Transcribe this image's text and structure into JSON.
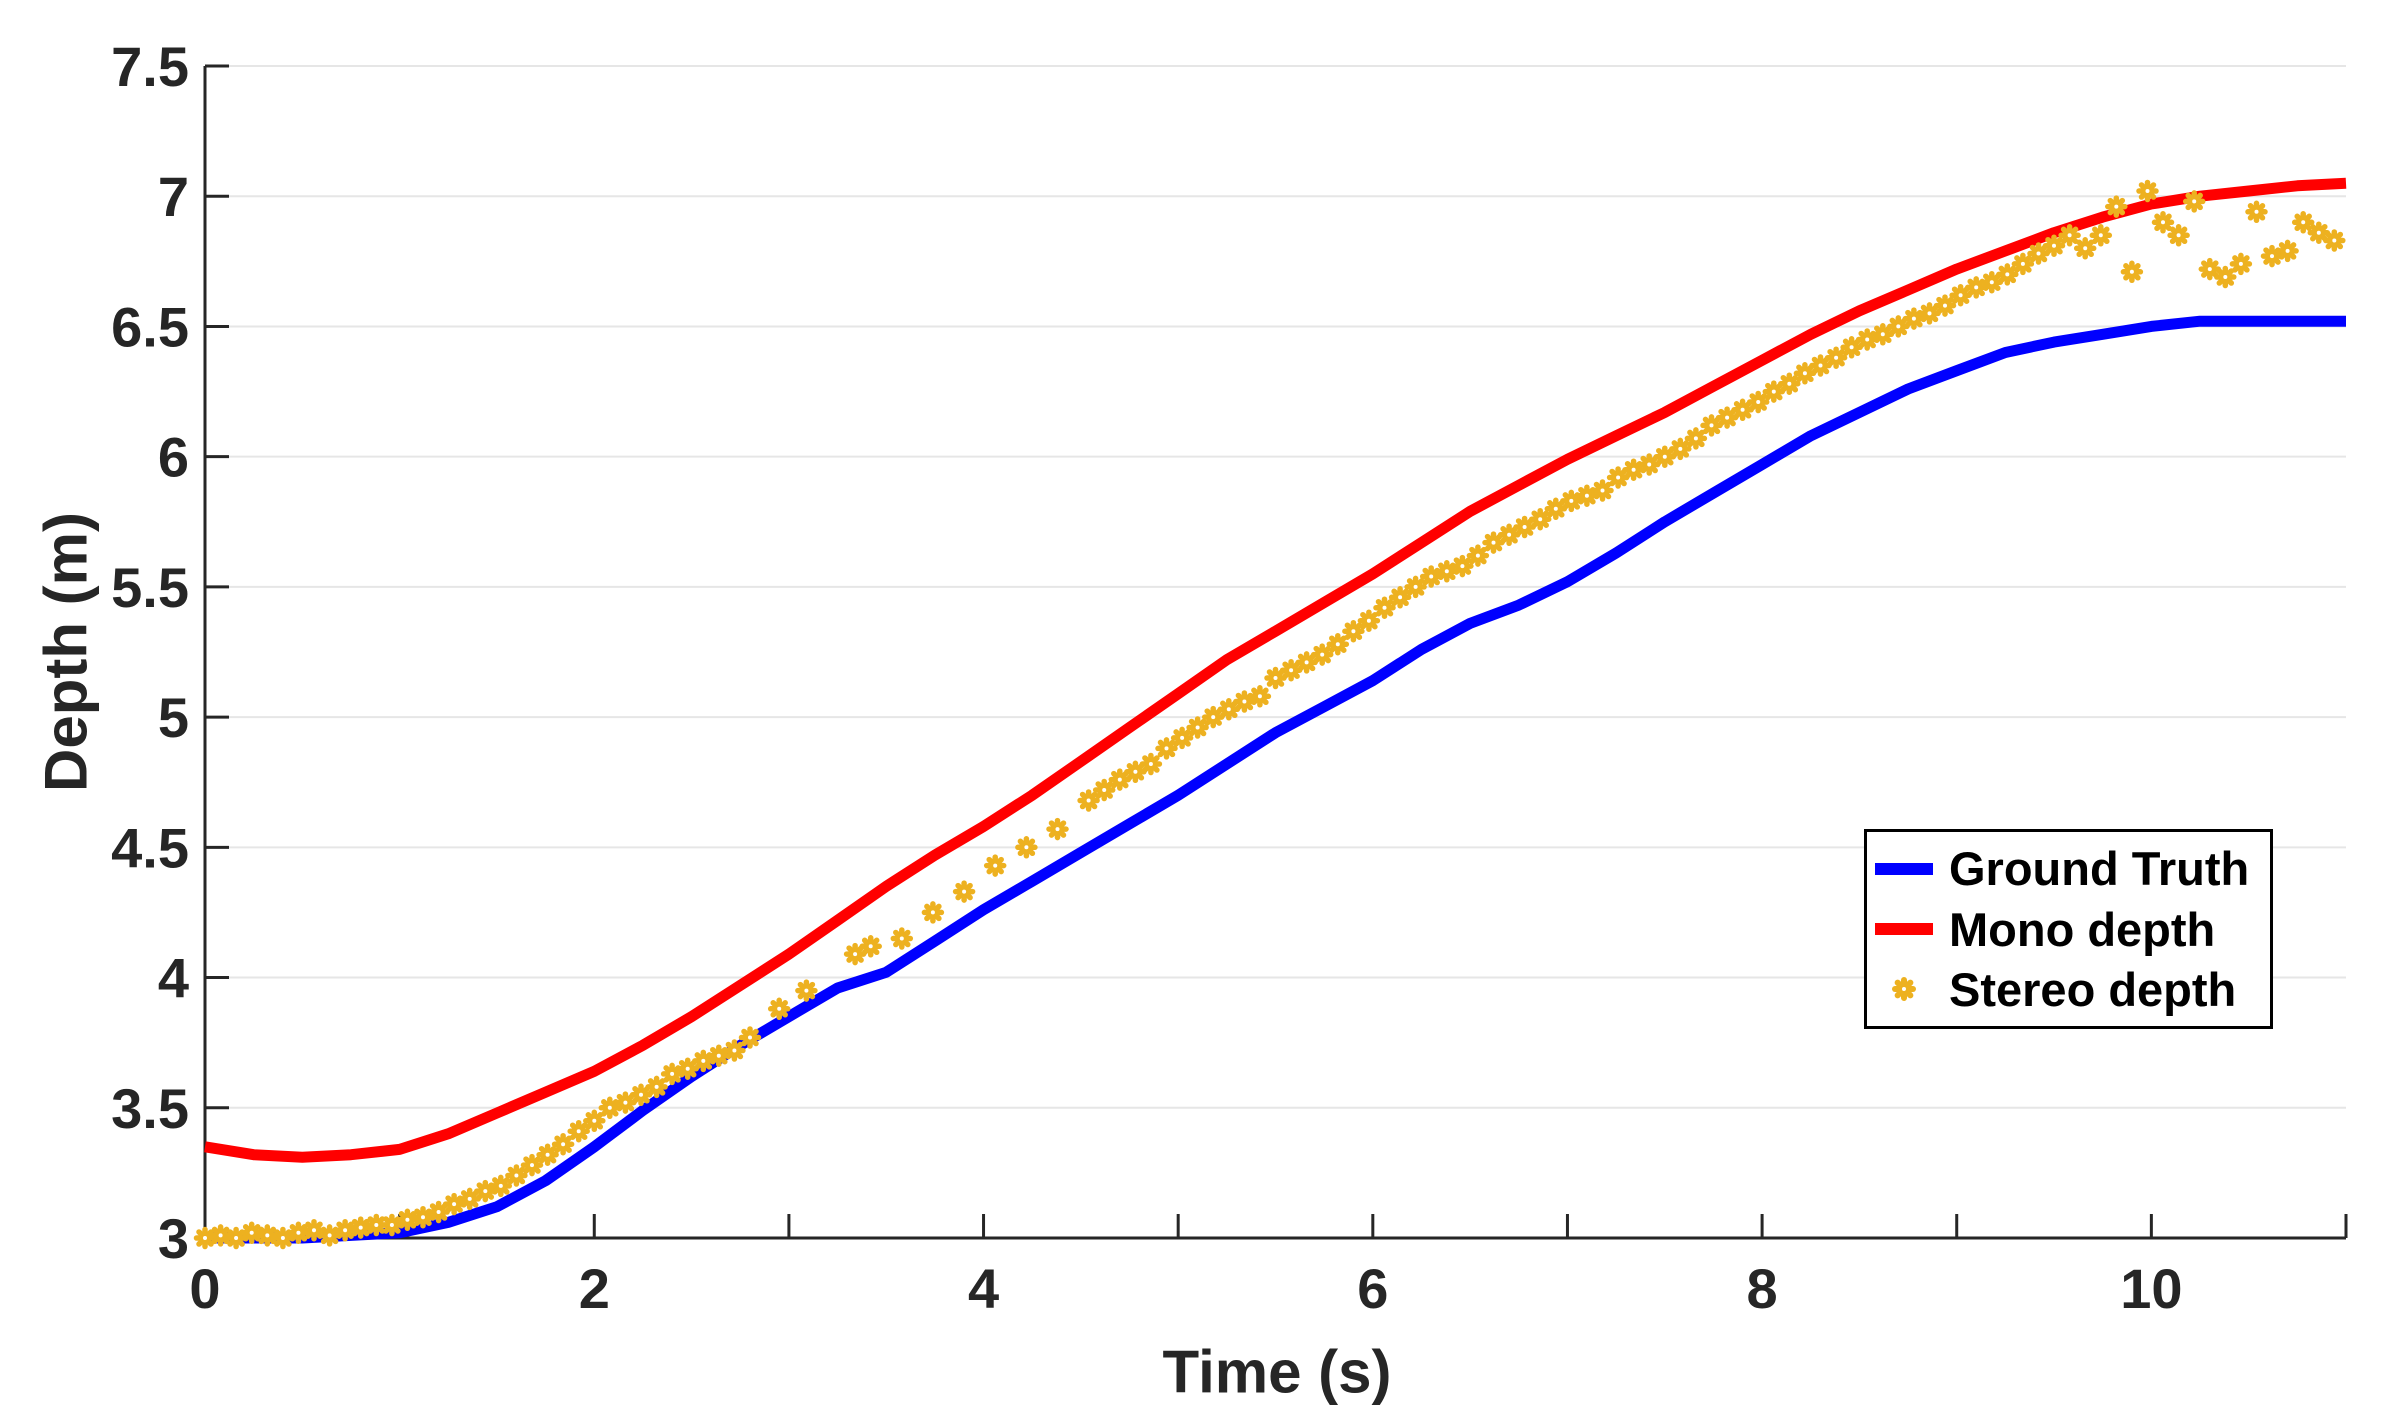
{
  "figure": {
    "background": "#ffffff"
  },
  "chart_data": {
    "type": "line",
    "title": "",
    "xlabel": "Time (s)",
    "ylabel": "Depth (m)",
    "xlim": [
      0,
      11
    ],
    "ylim": [
      3,
      7.5
    ],
    "grid": "horizontal",
    "grid_color": "#e6e6e6",
    "axis_color": "#262626",
    "tick_label_color": "#262626",
    "x_ticks": [
      0,
      1,
      2,
      3,
      4,
      5,
      6,
      7,
      8,
      9,
      10,
      11
    ],
    "x_tick_labels": [
      {
        "value": 0,
        "label": "0"
      },
      {
        "value": 2,
        "label": "2"
      },
      {
        "value": 4,
        "label": "4"
      },
      {
        "value": 6,
        "label": "6"
      },
      {
        "value": 8,
        "label": "8"
      },
      {
        "value": 10,
        "label": "10"
      }
    ],
    "y_tick_labels": [
      {
        "value": 3,
        "label": "3"
      },
      {
        "value": 3.5,
        "label": "3.5"
      },
      {
        "value": 4,
        "label": "4"
      },
      {
        "value": 4.5,
        "label": "4.5"
      },
      {
        "value": 5,
        "label": "5"
      },
      {
        "value": 5.5,
        "label": "5.5"
      },
      {
        "value": 6,
        "label": "6"
      },
      {
        "value": 6.5,
        "label": "6.5"
      },
      {
        "value": 7,
        "label": "7"
      },
      {
        "value": 7.5,
        "label": "7.5"
      }
    ],
    "legend": {
      "position": "right-center",
      "border_color": "#000000",
      "background": "#ffffff"
    },
    "series": [
      {
        "name": "Ground Truth",
        "type": "line",
        "color": "#0000ff",
        "line_width": 11,
        "points": [
          [
            0,
            3.0
          ],
          [
            0.25,
            3.0
          ],
          [
            0.5,
            3.0
          ],
          [
            0.75,
            3.01
          ],
          [
            1,
            3.02
          ],
          [
            1.25,
            3.06
          ],
          [
            1.5,
            3.12
          ],
          [
            1.75,
            3.22
          ],
          [
            2,
            3.35
          ],
          [
            2.25,
            3.49
          ],
          [
            2.5,
            3.62
          ],
          [
            2.75,
            3.74
          ],
          [
            3,
            3.85
          ],
          [
            3.25,
            3.96
          ],
          [
            3.5,
            4.02
          ],
          [
            3.75,
            4.14
          ],
          [
            4,
            4.26
          ],
          [
            4.25,
            4.37
          ],
          [
            4.5,
            4.48
          ],
          [
            4.75,
            4.59
          ],
          [
            5,
            4.7
          ],
          [
            5.25,
            4.82
          ],
          [
            5.5,
            4.94
          ],
          [
            5.75,
            5.04
          ],
          [
            6,
            5.14
          ],
          [
            6.25,
            5.26
          ],
          [
            6.5,
            5.36
          ],
          [
            6.75,
            5.43
          ],
          [
            7,
            5.52
          ],
          [
            7.25,
            5.63
          ],
          [
            7.5,
            5.75
          ],
          [
            7.75,
            5.86
          ],
          [
            8,
            5.97
          ],
          [
            8.25,
            6.08
          ],
          [
            8.5,
            6.17
          ],
          [
            8.75,
            6.26
          ],
          [
            9,
            6.33
          ],
          [
            9.25,
            6.4
          ],
          [
            9.5,
            6.44
          ],
          [
            9.75,
            6.47
          ],
          [
            10,
            6.5
          ],
          [
            10.25,
            6.52
          ],
          [
            10.5,
            6.52
          ],
          [
            10.75,
            6.52
          ],
          [
            11,
            6.52
          ]
        ]
      },
      {
        "name": "Mono depth",
        "type": "line",
        "color": "#ff0000",
        "line_width": 11,
        "points": [
          [
            0,
            3.35
          ],
          [
            0.25,
            3.32
          ],
          [
            0.5,
            3.31
          ],
          [
            0.75,
            3.32
          ],
          [
            1,
            3.34
          ],
          [
            1.25,
            3.4
          ],
          [
            1.5,
            3.48
          ],
          [
            1.75,
            3.56
          ],
          [
            2,
            3.64
          ],
          [
            2.25,
            3.74
          ],
          [
            2.5,
            3.85
          ],
          [
            2.75,
            3.97
          ],
          [
            3,
            4.09
          ],
          [
            3.25,
            4.22
          ],
          [
            3.5,
            4.35
          ],
          [
            3.75,
            4.47
          ],
          [
            4,
            4.58
          ],
          [
            4.25,
            4.7
          ],
          [
            4.5,
            4.83
          ],
          [
            4.75,
            4.96
          ],
          [
            5,
            5.09
          ],
          [
            5.25,
            5.22
          ],
          [
            5.5,
            5.33
          ],
          [
            5.75,
            5.44
          ],
          [
            6,
            5.55
          ],
          [
            6.25,
            5.67
          ],
          [
            6.5,
            5.79
          ],
          [
            6.75,
            5.89
          ],
          [
            7,
            5.99
          ],
          [
            7.25,
            6.08
          ],
          [
            7.5,
            6.17
          ],
          [
            7.75,
            6.27
          ],
          [
            8,
            6.37
          ],
          [
            8.25,
            6.47
          ],
          [
            8.5,
            6.56
          ],
          [
            8.75,
            6.64
          ],
          [
            9,
            6.72
          ],
          [
            9.25,
            6.79
          ],
          [
            9.5,
            6.86
          ],
          [
            9.75,
            6.92
          ],
          [
            10,
            6.97
          ],
          [
            10.25,
            7.0
          ],
          [
            10.5,
            7.02
          ],
          [
            10.75,
            7.04
          ],
          [
            11,
            7.05
          ]
        ]
      },
      {
        "name": "Stereo depth",
        "type": "scatter",
        "color": "#edb120",
        "marker": "asterisk",
        "points": [
          [
            0.0,
            3.0
          ],
          [
            0.08,
            3.01
          ],
          [
            0.16,
            3.0
          ],
          [
            0.24,
            3.02
          ],
          [
            0.32,
            3.01
          ],
          [
            0.4,
            3.0
          ],
          [
            0.48,
            3.02
          ],
          [
            0.56,
            3.03
          ],
          [
            0.64,
            3.01
          ],
          [
            0.72,
            3.03
          ],
          [
            0.8,
            3.04
          ],
          [
            0.88,
            3.05
          ],
          [
            0.96,
            3.05
          ],
          [
            1.04,
            3.07
          ],
          [
            1.12,
            3.08
          ],
          [
            1.2,
            3.1
          ],
          [
            1.28,
            3.13
          ],
          [
            1.36,
            3.15
          ],
          [
            1.44,
            3.18
          ],
          [
            1.52,
            3.2
          ],
          [
            1.6,
            3.24
          ],
          [
            1.68,
            3.28
          ],
          [
            1.76,
            3.32
          ],
          [
            1.84,
            3.36
          ],
          [
            1.92,
            3.41
          ],
          [
            2.0,
            3.45
          ],
          [
            2.08,
            3.5
          ],
          [
            2.16,
            3.52
          ],
          [
            2.24,
            3.55
          ],
          [
            2.32,
            3.58
          ],
          [
            2.4,
            3.63
          ],
          [
            2.48,
            3.65
          ],
          [
            2.56,
            3.68
          ],
          [
            2.64,
            3.7
          ],
          [
            2.72,
            3.72
          ],
          [
            2.8,
            3.77
          ],
          [
            2.95,
            3.88
          ],
          [
            3.09,
            3.95
          ],
          [
            3.34,
            4.09
          ],
          [
            3.42,
            4.12
          ],
          [
            3.58,
            4.15
          ],
          [
            3.74,
            4.25
          ],
          [
            3.9,
            4.33
          ],
          [
            4.06,
            4.43
          ],
          [
            4.22,
            4.5
          ],
          [
            4.38,
            4.57
          ],
          [
            4.54,
            4.68
          ],
          [
            4.62,
            4.72
          ],
          [
            4.7,
            4.76
          ],
          [
            4.78,
            4.79
          ],
          [
            4.86,
            4.82
          ],
          [
            4.94,
            4.88
          ],
          [
            5.02,
            4.92
          ],
          [
            5.1,
            4.96
          ],
          [
            5.18,
            5.0
          ],
          [
            5.26,
            5.03
          ],
          [
            5.34,
            5.06
          ],
          [
            5.42,
            5.08
          ],
          [
            5.5,
            5.15
          ],
          [
            5.58,
            5.18
          ],
          [
            5.66,
            5.21
          ],
          [
            5.74,
            5.24
          ],
          [
            5.82,
            5.28
          ],
          [
            5.9,
            5.33
          ],
          [
            5.98,
            5.37
          ],
          [
            6.06,
            5.42
          ],
          [
            6.14,
            5.46
          ],
          [
            6.22,
            5.5
          ],
          [
            6.3,
            5.54
          ],
          [
            6.38,
            5.56
          ],
          [
            6.46,
            5.58
          ],
          [
            6.54,
            5.62
          ],
          [
            6.62,
            5.67
          ],
          [
            6.7,
            5.7
          ],
          [
            6.78,
            5.73
          ],
          [
            6.86,
            5.76
          ],
          [
            6.94,
            5.8
          ],
          [
            7.02,
            5.83
          ],
          [
            7.1,
            5.85
          ],
          [
            7.18,
            5.87
          ],
          [
            7.26,
            5.92
          ],
          [
            7.34,
            5.95
          ],
          [
            7.42,
            5.97
          ],
          [
            7.5,
            6.0
          ],
          [
            7.58,
            6.03
          ],
          [
            7.66,
            6.07
          ],
          [
            7.74,
            6.12
          ],
          [
            7.82,
            6.15
          ],
          [
            7.9,
            6.18
          ],
          [
            7.98,
            6.21
          ],
          [
            8.06,
            6.25
          ],
          [
            8.14,
            6.28
          ],
          [
            8.22,
            6.32
          ],
          [
            8.3,
            6.35
          ],
          [
            8.38,
            6.38
          ],
          [
            8.46,
            6.42
          ],
          [
            8.54,
            6.45
          ],
          [
            8.62,
            6.47
          ],
          [
            8.7,
            6.5
          ],
          [
            8.78,
            6.53
          ],
          [
            8.86,
            6.55
          ],
          [
            8.94,
            6.58
          ],
          [
            9.02,
            6.62
          ],
          [
            9.1,
            6.65
          ],
          [
            9.18,
            6.67
          ],
          [
            9.26,
            6.7
          ],
          [
            9.34,
            6.74
          ],
          [
            9.42,
            6.78
          ],
          [
            9.5,
            6.81
          ],
          [
            9.58,
            6.85
          ],
          [
            9.66,
            6.8
          ],
          [
            9.74,
            6.85
          ],
          [
            9.82,
            6.96
          ],
          [
            9.9,
            6.71
          ],
          [
            9.98,
            7.02
          ],
          [
            10.06,
            6.9
          ],
          [
            10.14,
            6.85
          ],
          [
            10.22,
            6.98
          ],
          [
            10.3,
            6.72
          ],
          [
            10.38,
            6.69
          ],
          [
            10.46,
            6.74
          ],
          [
            10.54,
            6.94
          ],
          [
            10.62,
            6.77
          ],
          [
            10.7,
            6.79
          ],
          [
            10.78,
            6.9
          ],
          [
            10.86,
            6.86
          ],
          [
            10.94,
            6.83
          ]
        ]
      }
    ]
  }
}
